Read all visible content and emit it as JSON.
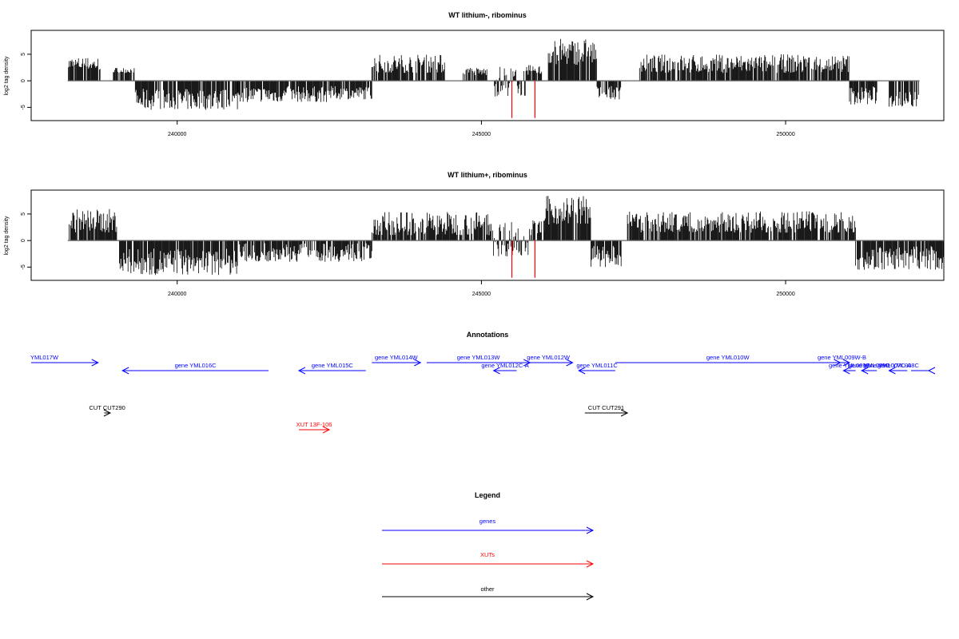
{
  "chart_data": [
    {
      "type": "bar",
      "title": "WT lithium-, ribominus",
      "ylabel": "log2 tag density",
      "xlim": [
        237600,
        252600
      ],
      "ylim": [
        -7.5,
        9.5
      ],
      "xticks": [
        240000,
        245000,
        250000
      ],
      "yticks": [
        -5,
        0,
        5
      ],
      "ytick_labels": [
        "-5",
        "0",
        "5"
      ],
      "xtick_labels": [
        "240000",
        "245000",
        "250000"
      ],
      "baseline": {
        "from": 238200,
        "to": 252200
      },
      "highlight_color": "#ff0000",
      "highlights": [
        {
          "x": 245500,
          "value": -7.0
        },
        {
          "x": 245880,
          "value": -7.0
        }
      ],
      "segments": [
        {
          "start": 238200,
          "end": 238750,
          "min": 2,
          "max": 4.5
        },
        {
          "start": 238950,
          "end": 239300,
          "min": 1.5,
          "max": 2.5
        },
        {
          "start": 239300,
          "end": 241000,
          "min": -5.5,
          "max": -1.5
        },
        {
          "start": 241000,
          "end": 242500,
          "min": -4,
          "max": -1
        },
        {
          "start": 242500,
          "end": 243200,
          "min": -3.5,
          "max": -1
        },
        {
          "start": 243200,
          "end": 244400,
          "min": 1.5,
          "max": 5
        },
        {
          "start": 244700,
          "end": 245100,
          "min": 1,
          "max": 2.5
        },
        {
          "start": 245200,
          "end": 245800,
          "min": -3,
          "max": 3
        },
        {
          "start": 245800,
          "end": 246000,
          "min": 1,
          "max": 3
        },
        {
          "start": 246100,
          "end": 246900,
          "min": 3,
          "max": 8
        },
        {
          "start": 246900,
          "end": 247300,
          "min": -3.5,
          "max": -1
        },
        {
          "start": 247600,
          "end": 251050,
          "min": 1.5,
          "max": 5
        },
        {
          "start": 251050,
          "end": 251500,
          "min": -4.5,
          "max": -1
        },
        {
          "start": 251700,
          "end": 252200,
          "min": -5,
          "max": -2
        }
      ]
    },
    {
      "type": "bar",
      "title": "WT lithium+, ribominus",
      "ylabel": "log2 tag density",
      "xlim": [
        237600,
        252600
      ],
      "ylim": [
        -7.5,
        9.5
      ],
      "xticks": [
        240000,
        245000,
        250000
      ],
      "yticks": [
        -5,
        0,
        5
      ],
      "ytick_labels": [
        "-5",
        "0",
        "5"
      ],
      "xtick_labels": [
        "240000",
        "245000",
        "250000"
      ],
      "baseline": {
        "from": 238200,
        "to": 252600
      },
      "highlight_color": "#ff0000",
      "highlights": [
        {
          "x": 245500,
          "value": -7.0
        },
        {
          "x": 245880,
          "value": -7.0
        }
      ],
      "segments": [
        {
          "start": 238200,
          "end": 239050,
          "min": 1.5,
          "max": 6
        },
        {
          "start": 239050,
          "end": 241000,
          "min": -6.5,
          "max": -1.5
        },
        {
          "start": 241000,
          "end": 243200,
          "min": -4,
          "max": -0.5
        },
        {
          "start": 243200,
          "end": 245200,
          "min": 1,
          "max": 5.5
        },
        {
          "start": 245200,
          "end": 245800,
          "min": -3,
          "max": 4
        },
        {
          "start": 245800,
          "end": 246050,
          "min": 1,
          "max": 4
        },
        {
          "start": 246050,
          "end": 246800,
          "min": 3,
          "max": 8.5
        },
        {
          "start": 246800,
          "end": 247300,
          "min": -5,
          "max": -1
        },
        {
          "start": 247400,
          "end": 251150,
          "min": 1.5,
          "max": 5.5
        },
        {
          "start": 251150,
          "end": 252600,
          "min": -5.5,
          "max": -1
        }
      ]
    }
  ],
  "annotations": {
    "title": "Annotations",
    "colors": {
      "gene": "#0000ff",
      "xut": "#ff0000",
      "other": "#000000"
    },
    "features": [
      {
        "label": "YML017W",
        "kind": "gene",
        "strand": "+",
        "start": 237600,
        "end": 238700,
        "row": 0
      },
      {
        "label": "gene YML016C",
        "kind": "gene",
        "strand": "-",
        "start": 239100,
        "end": 241500,
        "row": 1
      },
      {
        "label": "gene YML015C",
        "kind": "gene",
        "strand": "-",
        "start": 242000,
        "end": 243100,
        "row": 1
      },
      {
        "label": "gene YML014W",
        "kind": "gene",
        "strand": "+",
        "start": 243200,
        "end": 244000,
        "row": 0
      },
      {
        "label": "gene YML013W",
        "kind": "gene",
        "strand": "+",
        "start": 244100,
        "end": 245800,
        "row": 0
      },
      {
        "label": "gene YML012C-A",
        "kind": "gene",
        "strand": "-",
        "start": 245200,
        "end": 245580,
        "row": 1
      },
      {
        "label": "gene YML012W",
        "kind": "gene",
        "strand": "+",
        "start": 245700,
        "end": 246500,
        "row": 0
      },
      {
        "label": "gene YML011C",
        "kind": "gene",
        "strand": "-",
        "start": 246600,
        "end": 247200,
        "row": 1
      },
      {
        "label": "gene YML010W",
        "kind": "gene",
        "strand": "+",
        "start": 247200,
        "end": 250900,
        "row": 0
      },
      {
        "label": "gene YML009W-B",
        "kind": "gene",
        "strand": "+",
        "start": 250800,
        "end": 251050,
        "row": 0
      },
      {
        "label": "gene YML009C",
        "kind": "gene",
        "strand": "-",
        "start": 250950,
        "end": 251150,
        "row": 1
      },
      {
        "label": "gene YML009C",
        "kind": "gene",
        "strand": "-",
        "start": 251250,
        "end": 251500,
        "row": 1
      },
      {
        "label": "gene YML008C",
        "kind": "gene",
        "strand": "-",
        "start": 251700,
        "end": 252000,
        "row": 1
      },
      {
        "label": "gene YML007C-A",
        "kind": "gene",
        "strand": "-",
        "start": 252350,
        "end": 252480,
        "row": 1
      },
      {
        "label": "CUT CUT290",
        "kind": "other",
        "strand": "+",
        "start": 238800,
        "end": 238900,
        "row": 2
      },
      {
        "label": "CUT CUT291",
        "kind": "other",
        "strand": "+",
        "start": 246700,
        "end": 247400,
        "row": 2
      },
      {
        "label": "XUT 13F-106",
        "kind": "xut",
        "strand": "+",
        "start": 242000,
        "end": 242500,
        "row": 3
      }
    ]
  },
  "legend": {
    "title": "Legend",
    "items": [
      {
        "label": "genes",
        "color": "#0000ff"
      },
      {
        "label": "XUTs",
        "color": "#ff0000"
      },
      {
        "label": "other",
        "color": "#000000"
      }
    ]
  }
}
